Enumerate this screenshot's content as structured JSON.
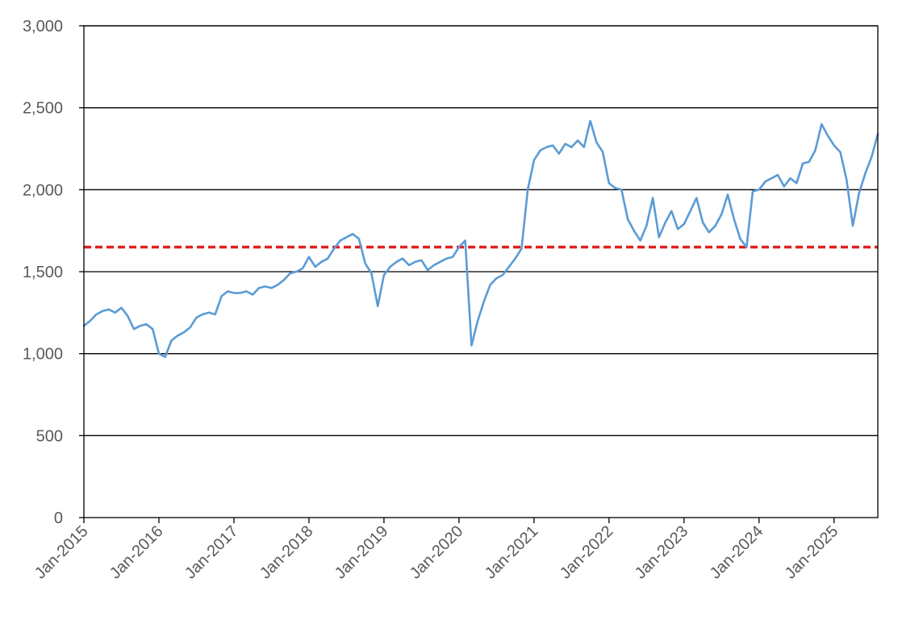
{
  "chart_data": {
    "type": "line",
    "title": "",
    "xlabel": "",
    "ylabel": "",
    "ylim": [
      0,
      3000
    ],
    "xlim": [
      "2015-01",
      "2025-08"
    ],
    "yticks": [
      0,
      500,
      1000,
      1500,
      2000,
      2500,
      3000
    ],
    "ytick_labels": [
      "0",
      "500",
      "1,000",
      "1,500",
      "2,000",
      "2,500",
      "3,000"
    ],
    "xticks": [
      "2015-01",
      "2016-01",
      "2017-01",
      "2018-01",
      "2019-01",
      "2020-01",
      "2021-01",
      "2022-01",
      "2023-01",
      "2024-01",
      "2025-01"
    ],
    "xtick_labels": [
      "Jan-2015",
      "Jan-2016",
      "Jan-2017",
      "Jan-2018",
      "Jan-2019",
      "Jan-2020",
      "Jan-2021",
      "Jan-2022",
      "Jan-2023",
      "Jan-2024",
      "Jan-2025"
    ],
    "grid": "horizontal",
    "legend": "none",
    "series": [
      {
        "color": "#5b9bd5",
        "x": [
          "2015-01",
          "2015-02",
          "2015-03",
          "2015-04",
          "2015-05",
          "2015-06",
          "2015-07",
          "2015-08",
          "2015-09",
          "2015-10",
          "2015-11",
          "2015-12",
          "2016-01",
          "2016-02",
          "2016-03",
          "2016-04",
          "2016-05",
          "2016-06",
          "2016-07",
          "2016-08",
          "2016-09",
          "2016-10",
          "2016-11",
          "2016-12",
          "2017-01",
          "2017-02",
          "2017-03",
          "2017-04",
          "2017-05",
          "2017-06",
          "2017-07",
          "2017-08",
          "2017-09",
          "2017-10",
          "2017-11",
          "2017-12",
          "2018-01",
          "2018-02",
          "2018-03",
          "2018-04",
          "2018-05",
          "2018-06",
          "2018-07",
          "2018-08",
          "2018-09",
          "2018-10",
          "2018-11",
          "2018-12",
          "2019-01",
          "2019-02",
          "2019-03",
          "2019-04",
          "2019-05",
          "2019-06",
          "2019-07",
          "2019-08",
          "2019-09",
          "2019-10",
          "2019-11",
          "2019-12",
          "2020-01",
          "2020-02",
          "2020-03",
          "2020-04",
          "2020-05",
          "2020-06",
          "2020-07",
          "2020-08",
          "2020-09",
          "2020-10",
          "2020-11",
          "2020-12",
          "2021-01",
          "2021-02",
          "2021-03",
          "2021-04",
          "2021-05",
          "2021-06",
          "2021-07",
          "2021-08",
          "2021-09",
          "2021-10",
          "2021-11",
          "2021-12",
          "2022-01",
          "2022-02",
          "2022-03",
          "2022-04",
          "2022-05",
          "2022-06",
          "2022-07",
          "2022-08",
          "2022-09",
          "2022-10",
          "2022-11",
          "2022-12",
          "2023-01",
          "2023-02",
          "2023-03",
          "2023-04",
          "2023-05",
          "2023-06",
          "2023-07",
          "2023-08",
          "2023-09",
          "2023-10",
          "2023-11",
          "2023-12",
          "2024-01",
          "2024-02",
          "2024-03",
          "2024-04",
          "2024-05",
          "2024-06",
          "2024-07",
          "2024-08",
          "2024-09",
          "2024-10",
          "2024-11",
          "2024-12",
          "2025-01",
          "2025-02",
          "2025-03",
          "2025-04",
          "2025-05",
          "2025-06",
          "2025-07",
          "2025-08"
        ],
        "values": [
          1170,
          1200,
          1240,
          1260,
          1270,
          1250,
          1280,
          1230,
          1150,
          1170,
          1180,
          1150,
          1000,
          980,
          1080,
          1110,
          1130,
          1160,
          1220,
          1240,
          1250,
          1240,
          1350,
          1380,
          1370,
          1370,
          1380,
          1360,
          1400,
          1410,
          1400,
          1420,
          1450,
          1490,
          1500,
          1520,
          1590,
          1530,
          1560,
          1580,
          1640,
          1690,
          1710,
          1730,
          1700,
          1550,
          1490,
          1290,
          1480,
          1530,
          1560,
          1580,
          1540,
          1560,
          1570,
          1510,
          1540,
          1560,
          1580,
          1590,
          1650,
          1690,
          1050,
          1200,
          1320,
          1420,
          1460,
          1480,
          1530,
          1580,
          1640,
          2000,
          2180,
          2240,
          2260,
          2270,
          2220,
          2280,
          2260,
          2300,
          2260,
          2420,
          2290,
          2230,
          2040,
          2010,
          2000,
          1820,
          1750,
          1690,
          1780,
          1950,
          1710,
          1800,
          1870,
          1760,
          1790,
          1870,
          1950,
          1800,
          1740,
          1780,
          1850,
          1970,
          1820,
          1700,
          1650,
          1990,
          2000,
          2050,
          2070,
          2090,
          2020,
          2070,
          2040,
          2160,
          2170,
          2240,
          2400,
          2330,
          2270,
          2230,
          2060,
          1780,
          1980,
          2100,
          2200,
          2340
        ]
      }
    ],
    "reference_line": {
      "value": 1650,
      "color": "#e01f1f",
      "style": "dashed"
    },
    "axis_color": "#000000",
    "grid_color": "#000000",
    "tick_text_color": "#595959"
  }
}
